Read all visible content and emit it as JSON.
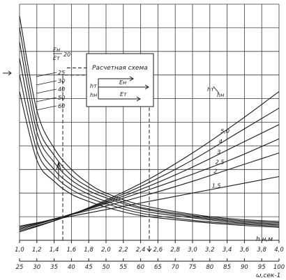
{
  "chart_data": {
    "type": "line",
    "x_top_axis": {
      "label": "h н,м",
      "range": [
        1.0,
        4.0
      ],
      "ticks": [
        "1,0",
        "1,2",
        "1,4",
        "1,6",
        "1,8",
        "2,0",
        "2,2",
        "2,4",
        "2,6",
        "2,8",
        "3,0",
        "3,2",
        "3,4",
        "3,6",
        "3,8",
        "4,0"
      ]
    },
    "x_bottom_axis": {
      "label": "ω,сек-1",
      "range": [
        25,
        100
      ],
      "ticks": [
        "25",
        "30",
        "35",
        "40",
        "45",
        "50",
        "55",
        "60",
        "65",
        "70",
        "75",
        "80",
        "85",
        "90",
        "95",
        "100"
      ]
    },
    "grid": true,
    "upper_family_label": {
      "line1": "Ен",
      "line2": "Ет",
      "first_value": "20"
    },
    "upper_family": [
      {
        "name": "20",
        "x": [
          1.0,
          1.2,
          1.4,
          1.6,
          1.8,
          2.0,
          2.4,
          3.0,
          3.5,
          4.0
        ],
        "y": [
          95,
          55,
          39,
          30,
          24,
          20,
          15,
          11,
          9,
          8
        ]
      },
      {
        "name": "25",
        "x": [
          1.0,
          1.2,
          1.4,
          1.6,
          1.8,
          2.0,
          2.4,
          3.0,
          3.5,
          4.0
        ],
        "y": [
          90,
          50,
          36,
          27.5,
          22.5,
          19,
          14,
          10.5,
          8.5,
          7.5
        ]
      },
      {
        "name": "30",
        "x": [
          1.0,
          1.2,
          1.4,
          1.6,
          1.8,
          2.0,
          2.4,
          3.0,
          3.5,
          4.0
        ],
        "y": [
          84,
          46,
          33,
          25.5,
          21,
          18,
          13.5,
          10,
          8,
          7
        ]
      },
      {
        "name": "40",
        "x": [
          1.0,
          1.2,
          1.4,
          1.6,
          1.8,
          2.0,
          2.4,
          3.0,
          3.5,
          4.0
        ],
        "y": [
          77,
          42,
          30,
          23.5,
          19.5,
          16.5,
          12.5,
          9.5,
          7.5,
          6.5
        ]
      },
      {
        "name": "50",
        "x": [
          1.0,
          1.2,
          1.4,
          1.6,
          1.8,
          2.0,
          2.4,
          3.0,
          3.5,
          4.0
        ],
        "y": [
          70,
          38,
          27.5,
          21.5,
          18,
          15.5,
          11.5,
          8.5,
          7,
          6
        ]
      },
      {
        "name": "60",
        "x": [
          1.0,
          1.2,
          1.4,
          1.6,
          1.8,
          2.0,
          2.4,
          3.0,
          3.5,
          4.0
        ],
        "y": [
          63,
          34,
          25,
          19.5,
          16.5,
          14,
          10.5,
          8,
          6.5,
          5.5
        ]
      }
    ],
    "lower_family_label": {
      "line1": "hт",
      "line2": "hн"
    },
    "lower_family": [
      {
        "name": "1,5",
        "x": [
          1.0,
          1.5,
          2.0,
          2.5,
          3.0,
          3.5,
          4.0
        ],
        "y": [
          6,
          9.5,
          13,
          16.5,
          20,
          23.5,
          27
        ]
      },
      {
        "name": "2",
        "x": [
          1.0,
          1.5,
          2.0,
          2.5,
          3.0,
          3.5,
          4.0
        ],
        "y": [
          5.5,
          10,
          14.5,
          19.5,
          25,
          31,
          37
        ]
      },
      {
        "name": "2,5",
        "x": [
          1.0,
          1.5,
          2.0,
          2.5,
          3.0,
          3.5,
          4.0
        ],
        "y": [
          5,
          10,
          15.5,
          21.5,
          28,
          35,
          43
        ]
      },
      {
        "name": "3",
        "x": [
          1.0,
          1.5,
          2.0,
          2.5,
          3.0,
          3.5,
          4.0
        ],
        "y": [
          4.5,
          10,
          16,
          23,
          31,
          40,
          49
        ]
      },
      {
        "name": "4",
        "x": [
          1.0,
          1.5,
          2.0,
          2.5,
          3.0,
          3.5,
          4.0
        ],
        "y": [
          4,
          9.5,
          16.5,
          24.5,
          34,
          45,
          56
        ]
      },
      {
        "name": "5,0",
        "x": [
          1.0,
          1.5,
          2.0,
          2.5,
          3.0,
          3.5,
          4.0
        ],
        "y": [
          3.5,
          9.5,
          17,
          26,
          37,
          49.5,
          63
        ]
      }
    ],
    "inset": {
      "title": "Расчетная схема",
      "labels": [
        "hт",
        "hн",
        "Ен",
        "Ет"
      ]
    },
    "example_path": {
      "x_start": 1.5,
      "x_end": 2.5
    }
  }
}
